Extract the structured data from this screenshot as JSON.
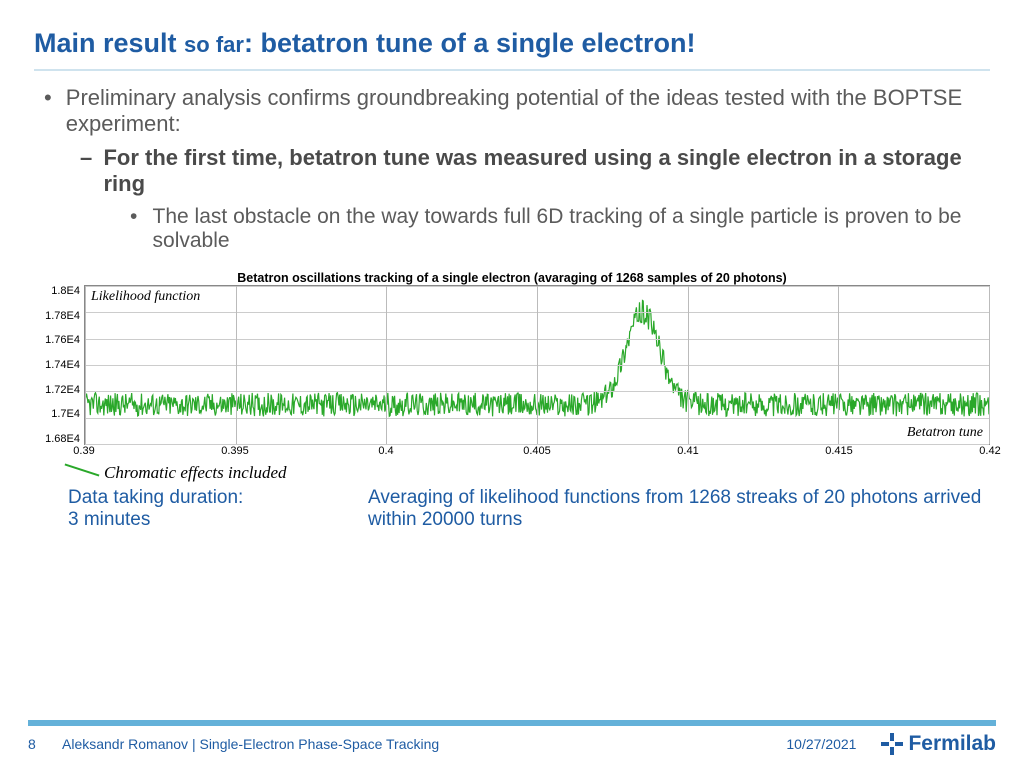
{
  "title_main": "Main result ",
  "title_sofar": "so far",
  "title_rest": ": betatron tune of a single electron!",
  "bullet1": "Preliminary analysis confirms groundbreaking potential of the ideas tested with the BOPTSE experiment:",
  "bullet2": "For the first time, betatron tune was measured using a single electron in a storage ring",
  "bullet3": "The last obstacle on the way towards full 6D tracking of a single particle is proven to be solvable",
  "chart": {
    "title": "Betatron oscillations tracking of a single electron (avaraging of 1268 samples of 20 photons)",
    "y_in_label": "Likelihood function",
    "x_in_label": "Betatron tune",
    "xlim": [
      0.39,
      0.42
    ],
    "ylim": [
      16800,
      18000
    ],
    "xticks": [
      0.39,
      0.395,
      0.4,
      0.405,
      0.41,
      0.415,
      0.42
    ],
    "xtick_labels": [
      "0.39",
      "0.395",
      "0.4",
      "0.405",
      "0.41",
      "0.415",
      "0.42"
    ],
    "yticks": [
      16800,
      17000,
      17200,
      17400,
      17600,
      17800,
      18000
    ],
    "ytick_labels": [
      "1.68E4",
      "1.7E4",
      "1.72E4",
      "1.74E4",
      "1.76E4",
      "1.78E4",
      "1.8E4"
    ],
    "line_color": "#2aa82a",
    "grid_color": "#bbbbbb",
    "background": "#ffffff",
    "baseline": 17100,
    "noise_amp": 90,
    "peak_x": 0.4085,
    "peak_height": 17800,
    "peak_width": 0.0008
  },
  "chrom_label": "Chromatic effects included",
  "duration_l1": "Data taking duration:",
  "duration_l2": "3 minutes",
  "avg_note": "Averaging of likelihood functions from 1268 streaks of 20 photons arrived within 20000 turns",
  "footer": {
    "page": "8",
    "author": "Aleksandr Romanov | Single-Electron Phase-Space Tracking",
    "date": "10/27/2021",
    "logo_text": "Fermilab"
  }
}
